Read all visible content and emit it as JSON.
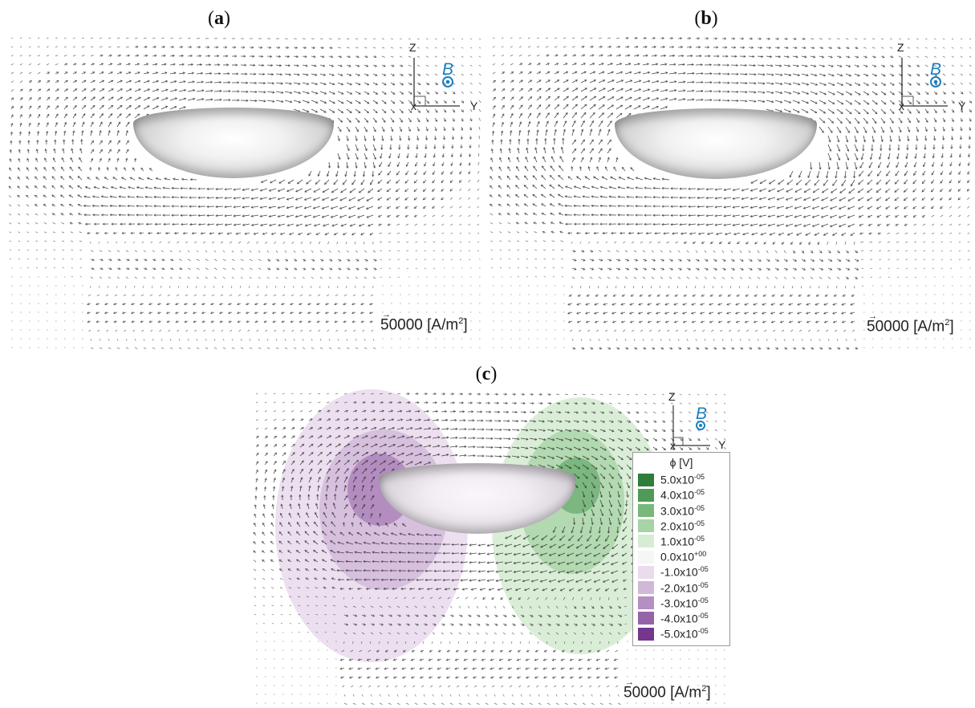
{
  "panels": [
    {
      "id": "a",
      "label": "a",
      "axis_z": "Z",
      "axis_y": "Y",
      "field_label": "B",
      "scale_value": "50000",
      "scale_unit_pre": "[A/m",
      "scale_unit_sup": "2",
      "scale_unit_post": "]"
    },
    {
      "id": "b",
      "label": "b",
      "axis_z": "Z",
      "axis_y": "Y",
      "field_label": "B",
      "scale_value": "50000",
      "scale_unit_pre": "[A/m",
      "scale_unit_sup": "2",
      "scale_unit_post": "]"
    },
    {
      "id": "c",
      "label": "c",
      "axis_z": "Z",
      "axis_y": "Y",
      "field_label": "B",
      "scale_value": "50000",
      "scale_unit_pre": "[A/m",
      "scale_unit_sup": "2",
      "scale_unit_post": "]"
    }
  ],
  "legend": {
    "title": "ϕ [V]",
    "entries": [
      {
        "mant": "5.0x10",
        "exp": "-05",
        "color": "#2e7d3a"
      },
      {
        "mant": "4.0x10",
        "exp": "-05",
        "color": "#4f9a56"
      },
      {
        "mant": "3.0x10",
        "exp": "-05",
        "color": "#79b87b"
      },
      {
        "mant": "2.0x10",
        "exp": "-05",
        "color": "#a8d3a6"
      },
      {
        "mant": "1.0x10",
        "exp": "-05",
        "color": "#d6ecd3"
      },
      {
        "mant": "0.0x10",
        "exp": "+00",
        "color": "#f6f6f6"
      },
      {
        "mant": "-1.0x10",
        "exp": "-05",
        "color": "#eadbed"
      },
      {
        "mant": "-2.0x10",
        "exp": "-05",
        "color": "#d2b7da"
      },
      {
        "mant": "-3.0x10",
        "exp": "-05",
        "color": "#b58ec2"
      },
      {
        "mant": "-4.0x10",
        "exp": "-05",
        "color": "#9564a8"
      },
      {
        "mant": "-5.0x10",
        "exp": "-05",
        "color": "#74378d"
      }
    ]
  },
  "colors": {
    "arrow": "#333333",
    "b_symbol": "#1a7fc1",
    "potential_negative": "#9564a8",
    "potential_positive": "#4f9a56"
  }
}
